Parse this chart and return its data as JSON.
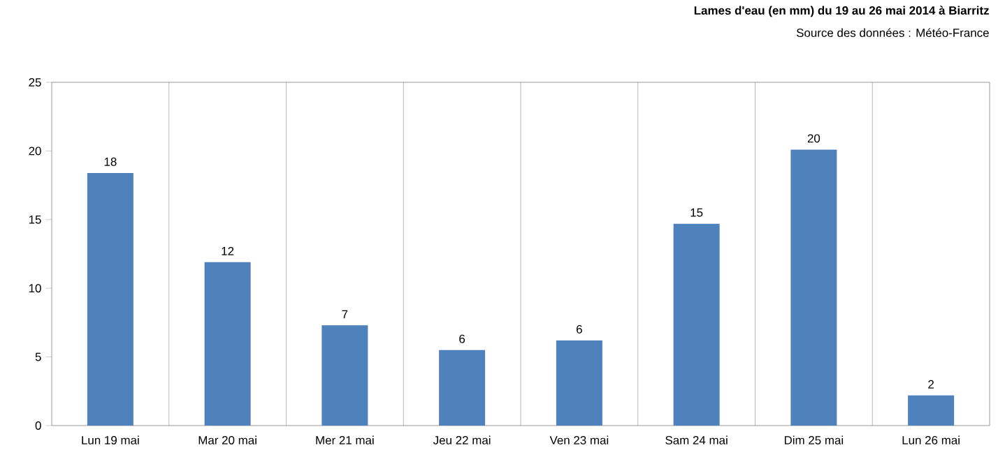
{
  "chart_data": {
    "type": "bar",
    "title": "Lames d'eau (en mm) du 19 au 26 mai 2014 à Biarritz",
    "subtitle": "Source des données : Météo-France",
    "categories": [
      "Lun 19 mai",
      "Mar 20 mai",
      "Mer 21 mai",
      "Jeu 22 mai",
      "Ven 23 mai",
      "Sam 24 mai",
      "Dim 25 mai",
      "Lun 26 mai"
    ],
    "values": [
      18.4,
      11.9,
      7.3,
      5.5,
      6.2,
      14.7,
      20.1,
      2.2
    ],
    "value_labels": [
      "18",
      "12",
      "7",
      "6",
      "6",
      "15",
      "20",
      "2"
    ],
    "color": "#4f81bd",
    "ylim": [
      0,
      25
    ],
    "yticks": [
      0,
      5,
      10,
      15,
      20,
      25
    ],
    "grid": "x"
  }
}
